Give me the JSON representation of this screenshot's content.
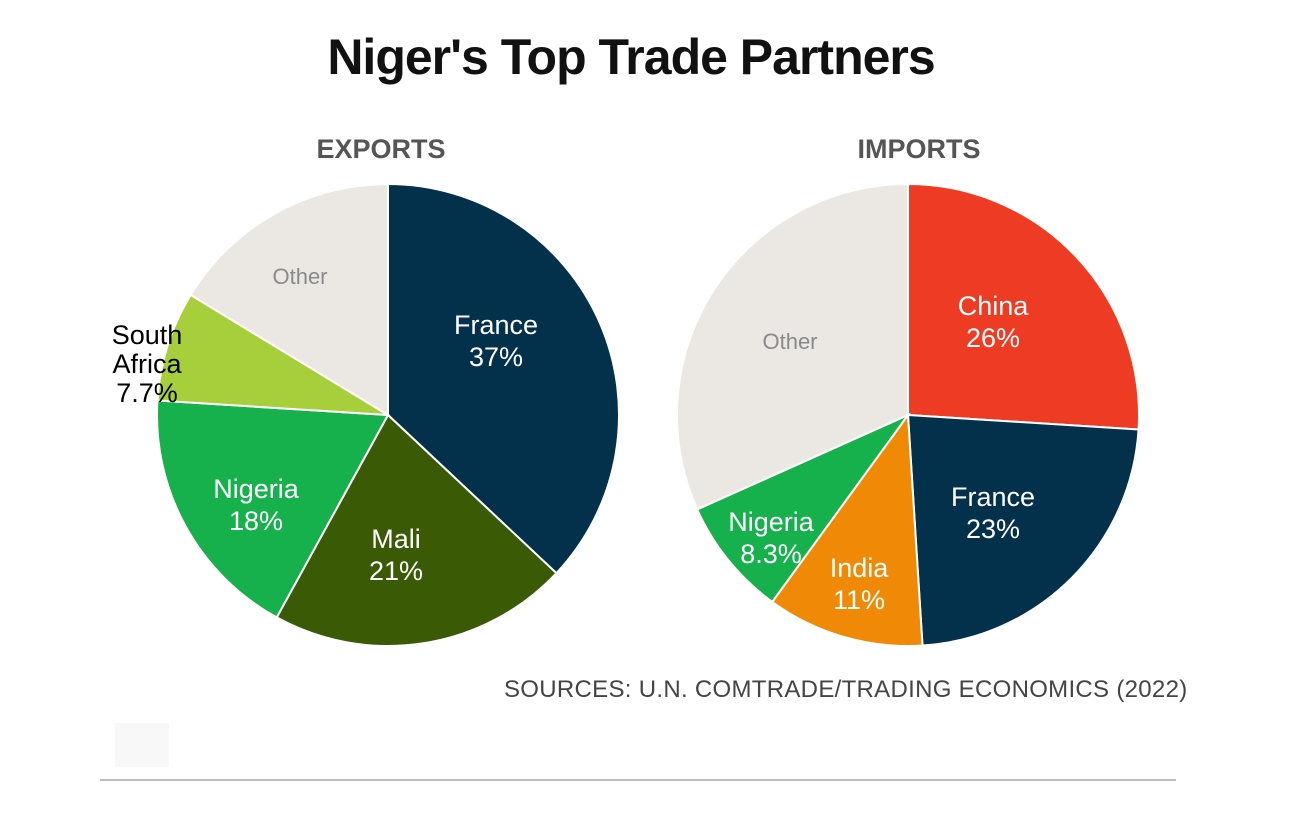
{
  "title": "Niger's Top Trade Partners",
  "source": "SOURCES: U.N. COMTRADE/TRADING ECONOMICS (2022)",
  "chart_data": [
    {
      "type": "pie",
      "title": "EXPORTS",
      "slices": [
        {
          "name": "France",
          "value_label": "37%",
          "value": 37,
          "color": "#03304a",
          "text_color": "#ffffff"
        },
        {
          "name": "Mali",
          "value_label": "21%",
          "value": 21,
          "color": "#3a5a06",
          "text_color": "#ffffff"
        },
        {
          "name": "Nigeria",
          "value_label": "18%",
          "value": 18,
          "color": "#16b04c",
          "text_color": "#ffffff"
        },
        {
          "name": "South Africa",
          "value_label": "7.7%",
          "value": 7.7,
          "color": "#a6cf3b",
          "text_color": "#000000"
        },
        {
          "name": "Other",
          "value_label": "",
          "value": 16.3,
          "color": "#ebe8e4",
          "text_color": "#8a8a8a"
        }
      ]
    },
    {
      "type": "pie",
      "title": "IMPORTS",
      "slices": [
        {
          "name": "China",
          "value_label": "26%",
          "value": 26,
          "color": "#ee3b24",
          "text_color": "#ffffff"
        },
        {
          "name": "France",
          "value_label": "23%",
          "value": 23,
          "color": "#03304a",
          "text_color": "#ffffff"
        },
        {
          "name": "India",
          "value_label": "11%",
          "value": 11,
          "color": "#f08a06",
          "text_color": "#ffffff"
        },
        {
          "name": "Nigeria",
          "value_label": "8.3%",
          "value": 8.3,
          "color": "#16b04c",
          "text_color": "#ffffff"
        },
        {
          "name": "Other",
          "value_label": "",
          "value": 31.7,
          "color": "#ebe8e4",
          "text_color": "#8a8a8a"
        }
      ]
    }
  ]
}
